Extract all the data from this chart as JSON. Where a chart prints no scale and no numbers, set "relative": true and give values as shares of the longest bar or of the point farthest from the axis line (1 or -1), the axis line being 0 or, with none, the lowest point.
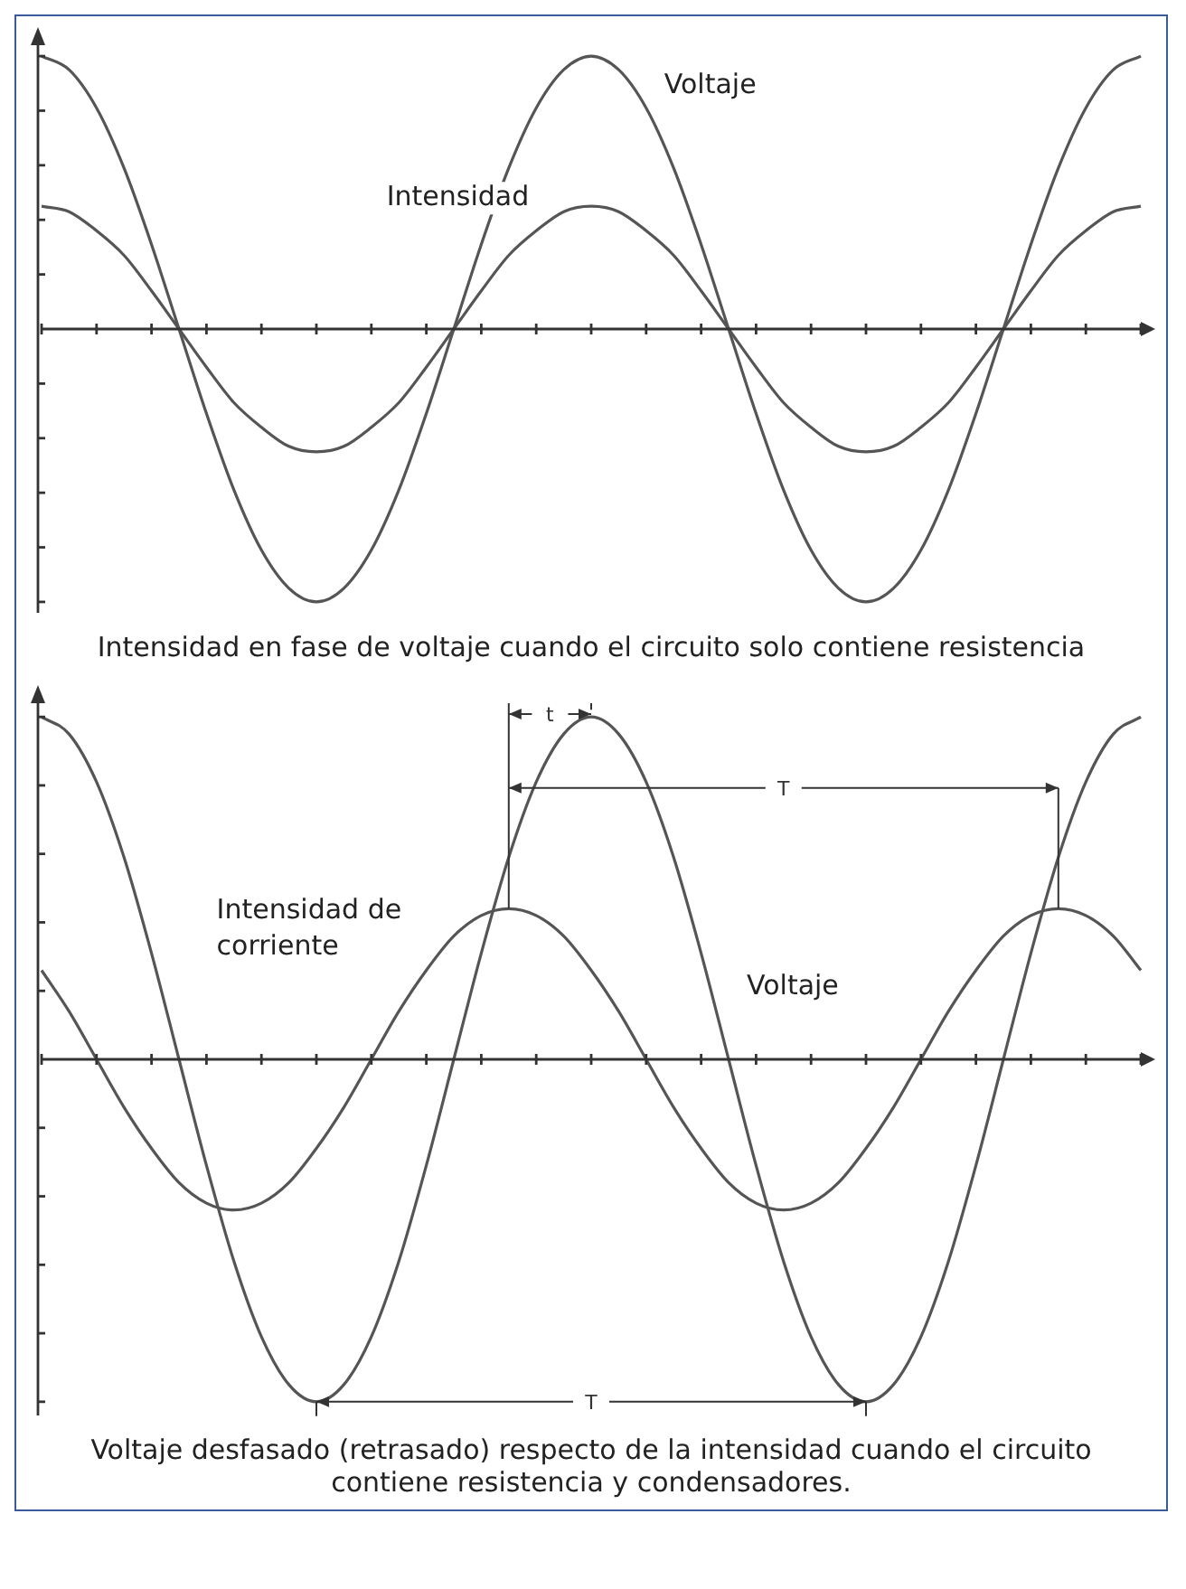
{
  "chart_data": [
    {
      "type": "line",
      "relative": true,
      "grid": false,
      "legend": false,
      "marker": "none",
      "categories": [
        null,
        null,
        null,
        null,
        null,
        null,
        null,
        null,
        null,
        null,
        null,
        null,
        null,
        null,
        null,
        null,
        null,
        null,
        null,
        null,
        null,
        null,
        null,
        null,
        null,
        null,
        null,
        null,
        null,
        null,
        null,
        null,
        null,
        null,
        null,
        null,
        null,
        null,
        null,
        null,
        null
      ],
      "series": [
        {
          "name": "Voltaje",
          "color": "#555555",
          "values": [
            1,
            0.95,
            0.81,
            0.59,
            0.31,
            0,
            -0.31,
            -0.59,
            -0.81,
            -0.95,
            -1,
            -0.95,
            -0.81,
            -0.59,
            -0.31,
            0,
            0.31,
            0.59,
            0.81,
            0.95,
            1,
            0.95,
            0.81,
            0.59,
            0.31,
            0,
            -0.31,
            -0.59,
            -0.81,
            -0.95,
            -1,
            -0.95,
            -0.81,
            -0.59,
            -0.31,
            0,
            0.31,
            0.59,
            0.81,
            0.95,
            1
          ]
        },
        {
          "name": "Intensidad",
          "color": "#555555",
          "values": [
            0.45,
            0.43,
            0.36,
            0.27,
            0.14,
            0,
            -0.14,
            -0.27,
            -0.36,
            -0.43,
            -0.45,
            -0.43,
            -0.36,
            -0.27,
            -0.14,
            0,
            0.14,
            0.27,
            0.36,
            0.43,
            0.45,
            0.43,
            0.36,
            0.27,
            0.14,
            0,
            -0.14,
            -0.27,
            -0.36,
            -0.43,
            -0.45,
            -0.43,
            -0.36,
            -0.27,
            -0.14,
            0,
            0.14,
            0.27,
            0.36,
            0.43,
            0.45
          ]
        }
      ],
      "annotations": [
        "Intensidad en fase de voltaje cuando el circuito solo contiene resistencia"
      ]
    },
    {
      "type": "line",
      "relative": true,
      "grid": false,
      "legend": false,
      "marker": "none",
      "categories": [
        null,
        null,
        null,
        null,
        null,
        null,
        null,
        null,
        null,
        null,
        null,
        null,
        null,
        null,
        null,
        null,
        null,
        null,
        null,
        null,
        null,
        null,
        null,
        null,
        null,
        null,
        null,
        null,
        null,
        null,
        null,
        null,
        null,
        null,
        null,
        null,
        null,
        null,
        null,
        null,
        null
      ],
      "series": [
        {
          "name": "Voltaje",
          "color": "#555555",
          "values": [
            1,
            0.95,
            0.81,
            0.59,
            0.31,
            0,
            -0.31,
            -0.59,
            -0.81,
            -0.95,
            -1,
            -0.95,
            -0.81,
            -0.59,
            -0.31,
            0,
            0.31,
            0.59,
            0.81,
            0.95,
            1,
            0.95,
            0.81,
            0.59,
            0.31,
            0,
            -0.31,
            -0.59,
            -0.81,
            -0.95,
            -1,
            -0.95,
            -0.81,
            -0.59,
            -0.31,
            0,
            0.31,
            0.59,
            0.81,
            0.95,
            1
          ]
        },
        {
          "name": "Intensidad de corriente",
          "color": "#555555",
          "values": [
            0.26,
            0.14,
            0,
            -0.14,
            -0.26,
            -0.36,
            -0.42,
            -0.44,
            -0.42,
            -0.36,
            -0.26,
            -0.14,
            0,
            0.14,
            0.26,
            0.36,
            0.42,
            0.44,
            0.42,
            0.36,
            0.26,
            0.14,
            0,
            -0.14,
            -0.26,
            -0.36,
            -0.42,
            -0.44,
            -0.42,
            -0.36,
            -0.26,
            -0.14,
            0,
            0.14,
            0.26,
            0.36,
            0.42,
            0.44,
            0.42,
            0.36,
            0.26
          ]
        }
      ],
      "annotations": [
        "t",
        "T",
        "T",
        "Voltaje desfasado (retrasado) respecto de la intensidad cuando el circuito contiene resistencia y condensadores."
      ]
    }
  ]
}
